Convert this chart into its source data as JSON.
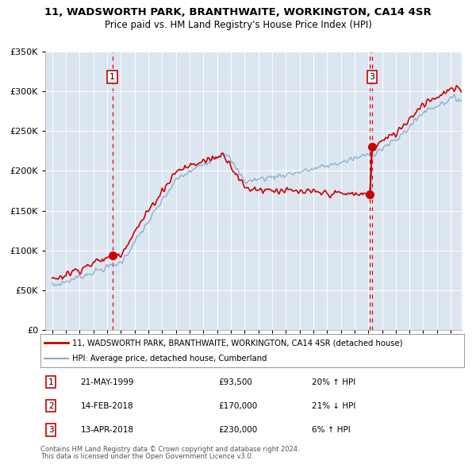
{
  "title": "11, WADSWORTH PARK, BRANTHWAITE, WORKINGTON, CA14 4SR",
  "subtitle": "Price paid vs. HM Land Registry's House Price Index (HPI)",
  "legend_property": "11, WADSWORTH PARK, BRANTHWAITE, WORKINGTON, CA14 4SR (detached house)",
  "legend_hpi": "HPI: Average price, detached house, Cumberland",
  "footer1": "Contains HM Land Registry data © Crown copyright and database right 2024.",
  "footer2": "This data is licensed under the Open Government Licence v3.0.",
  "transactions": [
    {
      "num": 1,
      "date": "21-MAY-1999",
      "price": "£93,500",
      "change": "20% ↑ HPI",
      "year": 1999.38,
      "price_val": 93500
    },
    {
      "num": 2,
      "date": "14-FEB-2018",
      "price": "£170,000",
      "change": "21% ↓ HPI",
      "year": 2018.12,
      "price_val": 170000
    },
    {
      "num": 3,
      "date": "13-APR-2018",
      "price": "£230,000",
      "change": "6% ↑ HPI",
      "year": 2018.28,
      "price_val": 230000
    }
  ],
  "ylim": [
    0,
    350000
  ],
  "xlim": [
    1994.5,
    2024.8
  ],
  "property_color": "#cc0000",
  "hpi_color": "#85aacf",
  "background_color": "#dce6f0",
  "plot_bg": "#dce6f0",
  "grid_color": "#ffffff",
  "vline_color": "#dd0000"
}
